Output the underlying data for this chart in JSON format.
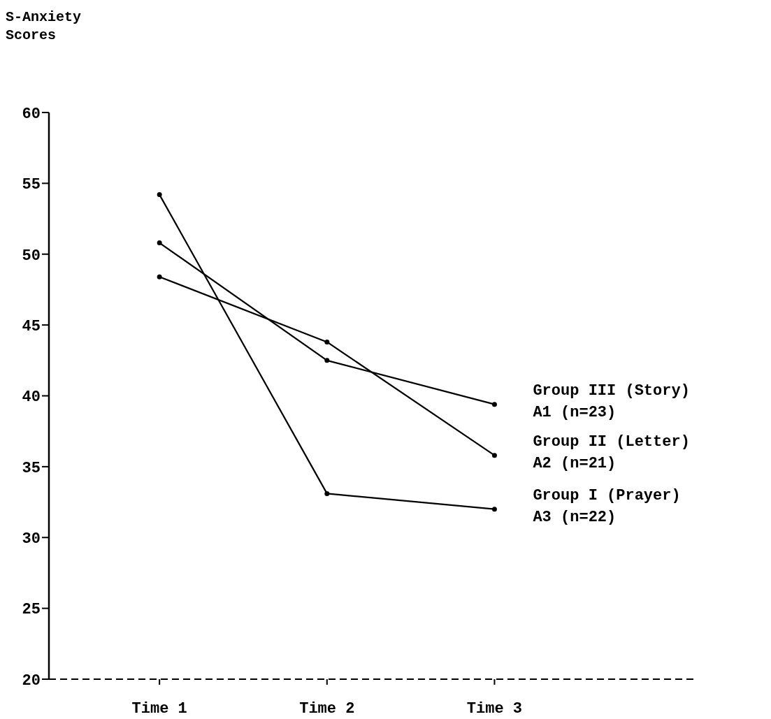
{
  "chart_data": {
    "type": "line",
    "ylabel": "S-Anxiety\nScores",
    "categories": [
      "Time 1",
      "Time 2",
      "Time 3"
    ],
    "series": [
      {
        "name": "Group III (Story)\nA1 (n=23)",
        "color": "#000000",
        "values": [
          50.8,
          42.5,
          39.4
        ]
      },
      {
        "name": "Group II (Letter)\nA2 (n=21)",
        "color": "#000000",
        "values": [
          48.4,
          43.8,
          35.8
        ]
      },
      {
        "name": "Group I (Prayer)\nA3 (n=22)",
        "color": "#000000",
        "values": [
          54.2,
          33.1,
          32.0
        ]
      }
    ],
    "ylim": [
      20,
      60
    ],
    "yticks": [
      20,
      25,
      30,
      35,
      40,
      45,
      50,
      55,
      60
    ],
    "marker": "circle",
    "line_style": "solid"
  }
}
